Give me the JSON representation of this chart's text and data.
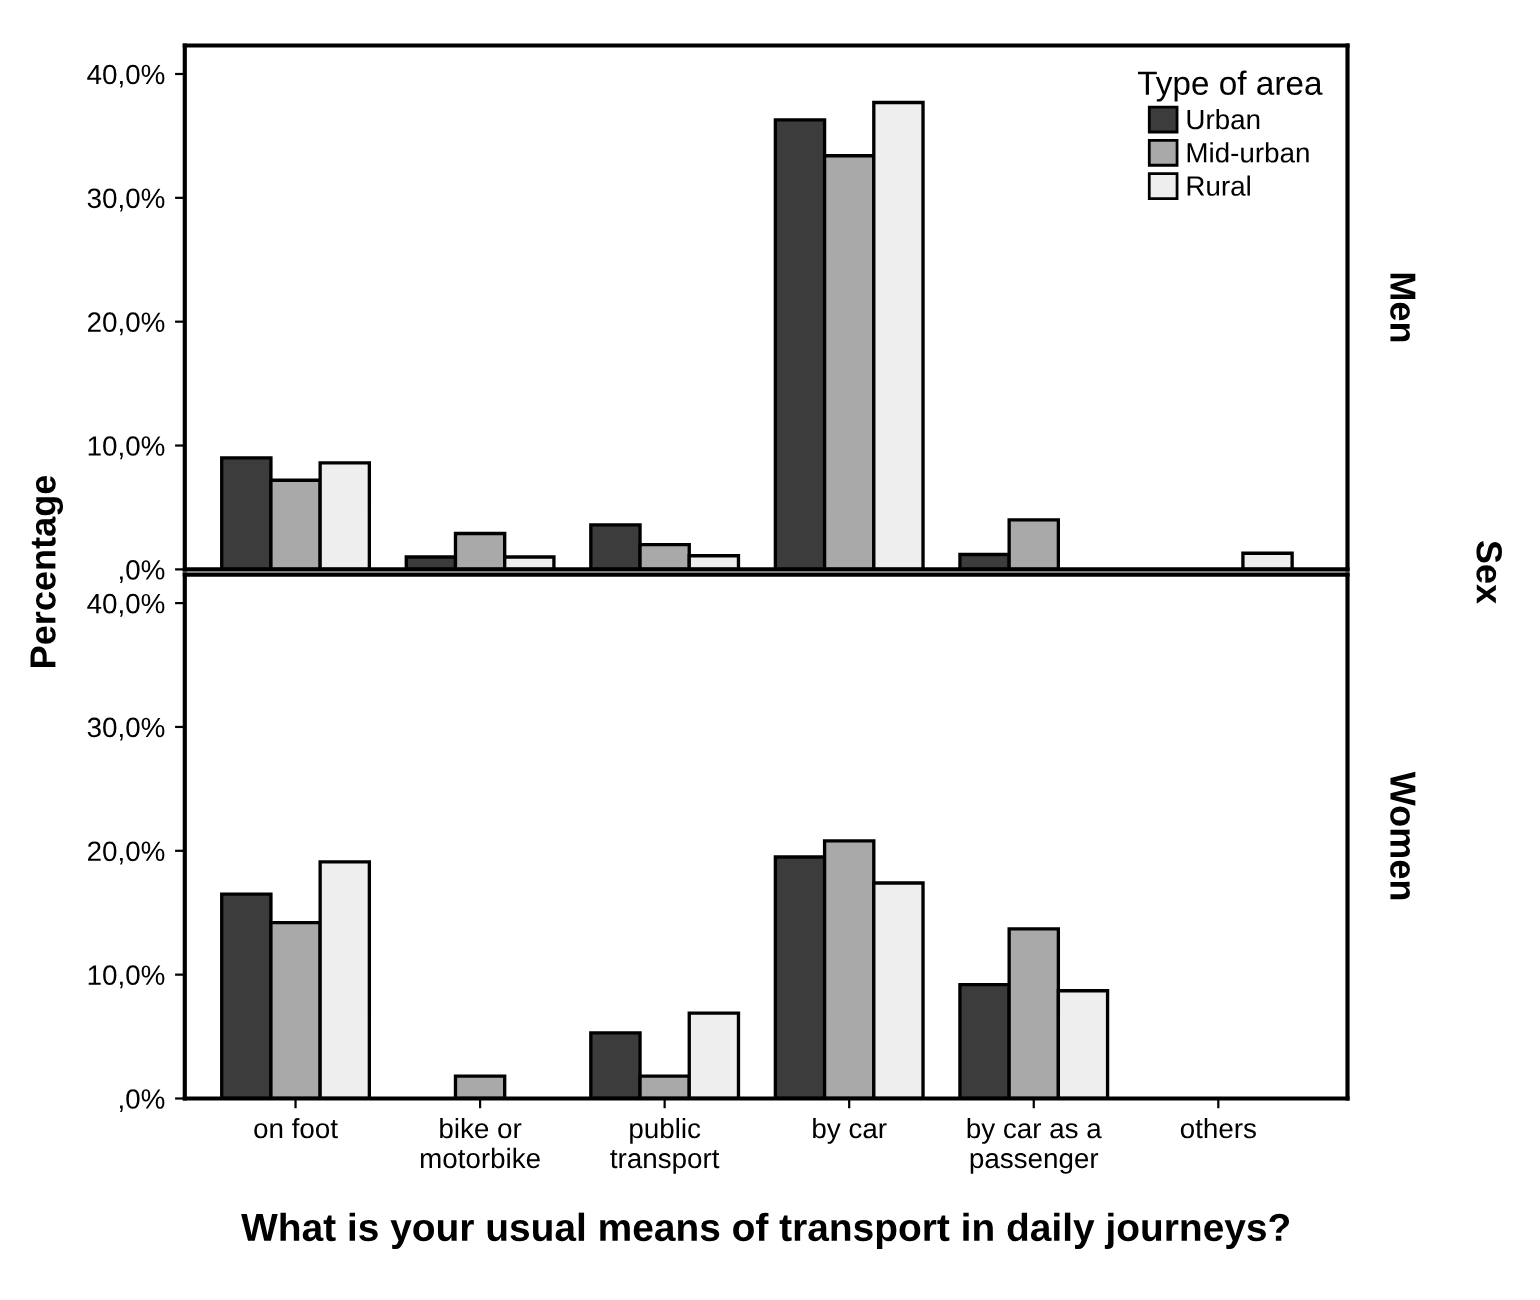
{
  "chart_data": [
    {
      "type": "bar",
      "ylabel": "Percentage",
      "y2label": "Men",
      "legend_title": "Type of area",
      "legend": "top right",
      "tick_labels": "y",
      "annotations": [
        "Sex"
      ],
      "categories": [
        null,
        null,
        null,
        null,
        null,
        null
      ],
      "series": [
        {
          "name": "Urban",
          "color": "#3c3c3c",
          "values": [
            9.0,
            1.0,
            3.6,
            36.3,
            1.2,
            null
          ]
        },
        {
          "name": "Mid-urban",
          "color": "#a9a9a9",
          "values": [
            7.2,
            2.9,
            2.0,
            33.4,
            4.0,
            null
          ]
        },
        {
          "name": "Rural",
          "color": "#eeeeee",
          "values": [
            8.6,
            1.0,
            1.1,
            37.7,
            null,
            1.3
          ]
        }
      ],
      "ylim": [
        0,
        42.3
      ],
      "yticks": [
        {
          "value": 0,
          "label": ",0%"
        },
        {
          "value": 10,
          "label": "10,0%"
        },
        {
          "value": 20,
          "label": "20,0%"
        },
        {
          "value": 30,
          "label": "30,0%"
        },
        {
          "value": 40,
          "label": "40,0%"
        }
      ]
    },
    {
      "type": "bar",
      "xlabel": "What is your usual means of transport in daily journeys?",
      "y2label": "Women",
      "categories": [
        "on foot",
        "bike or\nmotorbike",
        "public\ntransport",
        "by car",
        "by car as a\npassenger",
        "others"
      ],
      "series": [
        {
          "color": "#3c3c3c",
          "values": [
            16.5,
            null,
            5.3,
            19.5,
            9.2,
            null
          ]
        },
        {
          "color": "#a9a9a9",
          "values": [
            14.2,
            1.8,
            1.8,
            20.8,
            13.7,
            null
          ]
        },
        {
          "color": "#eeeeee",
          "values": [
            19.1,
            null,
            6.9,
            17.4,
            8.7,
            null
          ]
        }
      ],
      "ylim": [
        0,
        42.3
      ],
      "yticks": [
        {
          "value": 0,
          "label": ",0%"
        },
        {
          "value": 10,
          "label": "10,0%"
        },
        {
          "value": 20,
          "label": "20,0%"
        },
        {
          "value": 30,
          "label": "30,0%"
        },
        {
          "value": 40,
          "label": "40,0%"
        }
      ]
    }
  ]
}
